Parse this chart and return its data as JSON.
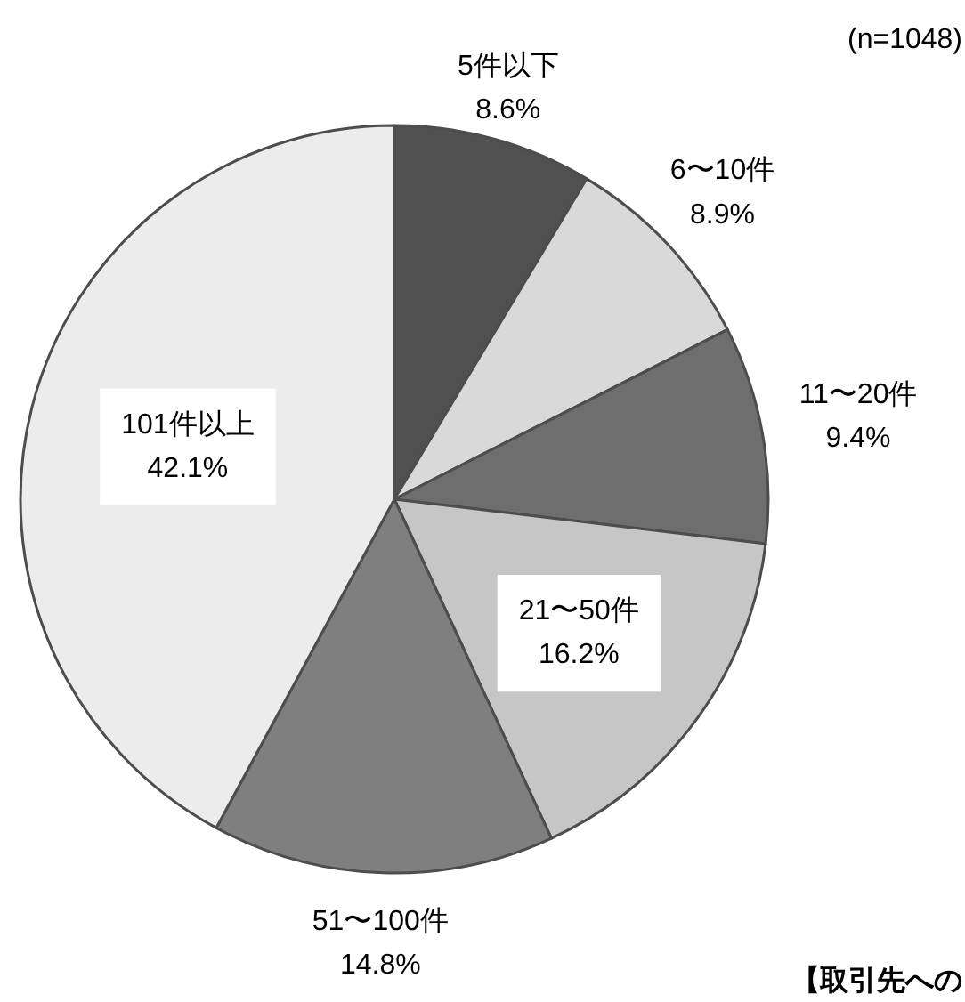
{
  "chart_data": {
    "type": "pie",
    "categories": [
      "5件以下",
      "6〜10件",
      "11〜20件",
      "21〜50件",
      "51〜100件",
      "101件以上"
    ],
    "values": [
      8.6,
      8.9,
      9.4,
      16.2,
      14.8,
      42.1
    ],
    "value_labels": [
      "8.6%",
      "8.9%",
      "9.4%",
      "16.2%",
      "14.8%",
      "42.1%"
    ],
    "colors": [
      "#505050",
      "#d9d9d9",
      "#6e6e6e",
      "#c6c6c6",
      "#7f7f7f",
      "#ececec"
    ],
    "annotations": [
      "(n=1048)",
      "【取引先への"
    ]
  }
}
